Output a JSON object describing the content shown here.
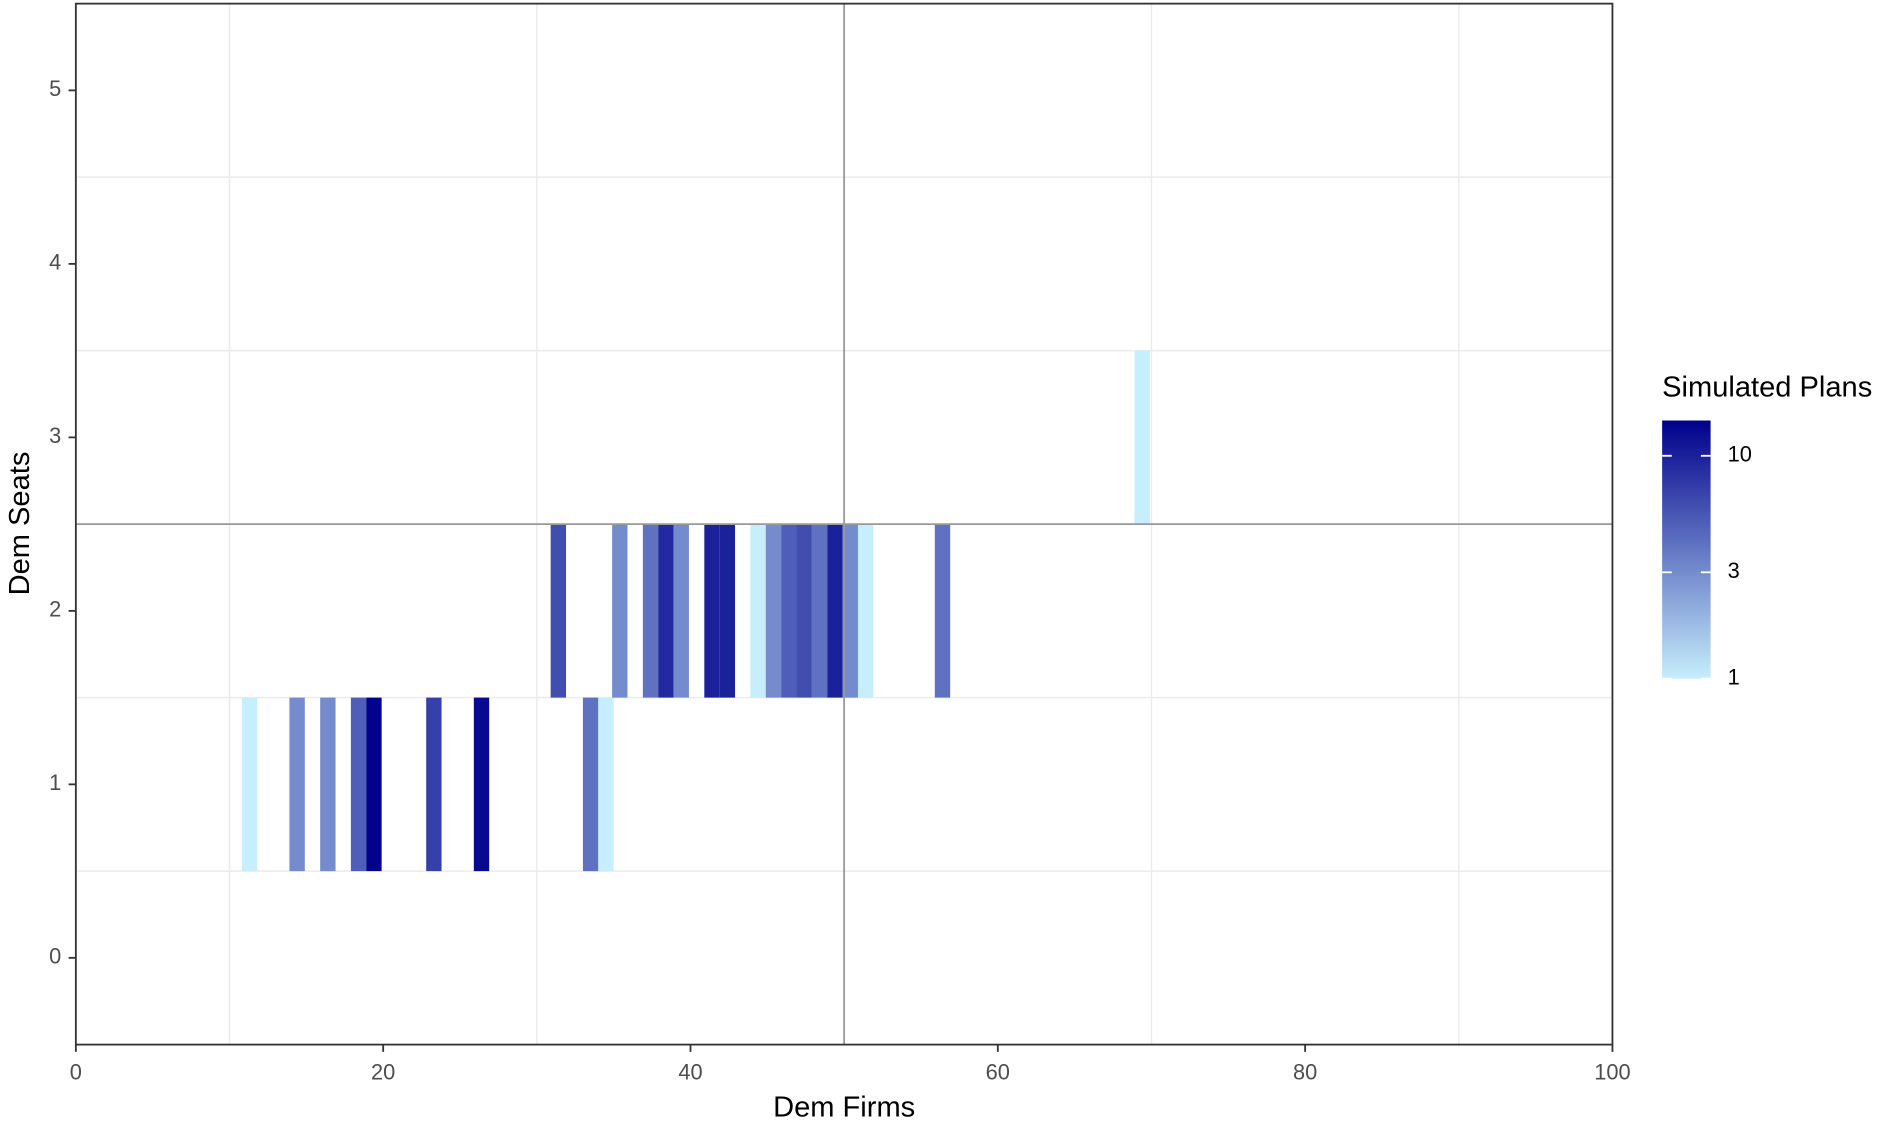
{
  "chart_data": {
    "type": "heatmap",
    "x_label": "Dem Firms",
    "y_label": "Dem Seats",
    "x": [
      11.3,
      14.4,
      16.4,
      18.4,
      19.4,
      23.3,
      26.4,
      33.5,
      34.5,
      31.4,
      35.4,
      37.4,
      38.4,
      39.4,
      41.4,
      42.4,
      44.4,
      45.4,
      46.4,
      47.4,
      48.4,
      49.4,
      50.4,
      51.4,
      56.4,
      69.4
    ],
    "y": [
      1,
      1,
      1,
      1,
      1,
      1,
      1,
      1,
      1,
      2,
      2,
      2,
      2,
      2,
      2,
      2,
      2,
      2,
      2,
      2,
      2,
      2,
      2,
      2,
      2,
      3
    ],
    "values": [
      1,
      3,
      3,
      5,
      14,
      7,
      13,
      4,
      1,
      6,
      3,
      4,
      9,
      3,
      10,
      10,
      1,
      3,
      5,
      6,
      4,
      10,
      3,
      1,
      4,
      1
    ],
    "tile_width": 1,
    "tile_height": 1,
    "xlim": [
      0,
      100
    ],
    "xticks": [
      0,
      20,
      40,
      60,
      80,
      100
    ],
    "ylim": [
      -0.5,
      5.5
    ],
    "yticks": [
      0,
      1,
      2,
      3,
      4,
      5
    ],
    "xgrid": [
      10,
      30,
      50,
      70,
      90
    ],
    "ygrid": [
      0.5,
      1.5,
      2.5,
      3.5,
      4.5
    ],
    "vline": 50,
    "hline": 2.5,
    "colorbar": {
      "title": "Simulated Plans",
      "log": true,
      "lim": [
        1,
        14.4
      ],
      "ticks": [
        1,
        3,
        10
      ],
      "low_color": "#c6eefc",
      "high_color": "#00008b"
    }
  }
}
